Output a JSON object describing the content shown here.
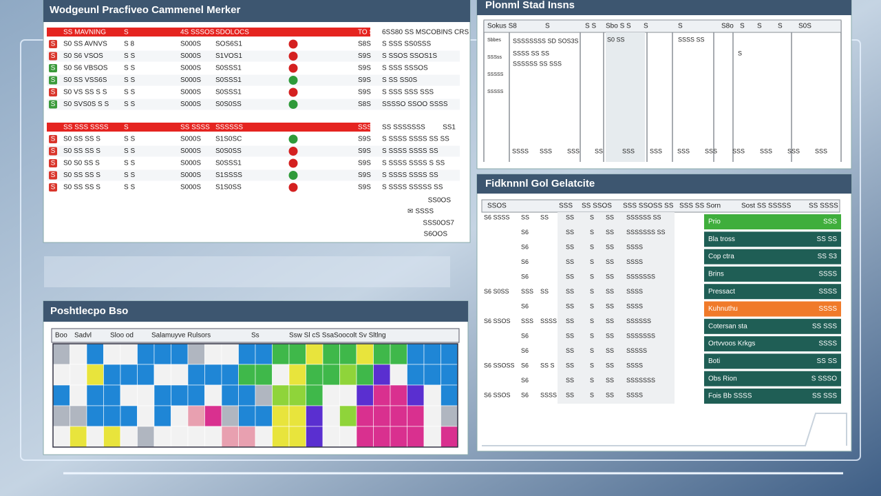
{
  "worklist": {
    "title": "Wodgeunl Pracfiveo Cammenel Merker",
    "header": [
      "SS MAVNING",
      "S",
      "4S SSSOS",
      "SDOLOCS",
      "TO SAAS",
      "6SS80 SS MSCOBINS CRS"
    ],
    "rows_a": [
      {
        "tag": "S",
        "tag_color": "#d9352b",
        "status_color": "#d42020",
        "cells": [
          "S0 SS AVNVS",
          "S  8",
          "S000S",
          "SOS6S1",
          "S8S",
          "S  SSS SS0SSS"
        ]
      },
      {
        "tag": "S",
        "tag_color": "#d9352b",
        "status_color": "#d42020",
        "cells": [
          "S0 S6 VSOS",
          "S  S",
          "S000S",
          "S1VOS1",
          "S9S",
          "S  SSOS SSOS1S"
        ]
      },
      {
        "tag": "S",
        "tag_color": "#3a9a3a",
        "status_color": "#d42020",
        "cells": [
          "S0 S6 VBSOS",
          "S  S",
          "S000S",
          "S0SSS1",
          "S9S",
          "S  SSS SSSOS"
        ]
      },
      {
        "tag": "S",
        "tag_color": "#3a9a3a",
        "status_color": "#2f9a3a",
        "cells": [
          "S0 SS VSS6S",
          "S  S",
          "S000S",
          "S0SSS1",
          "S9S",
          "S  SS SS0S"
        ]
      },
      {
        "tag": "S",
        "tag_color": "#d9352b",
        "status_color": "#d42020",
        "cells": [
          "S0 VS SS S  S",
          "S  S",
          "S000S",
          "S0SSS1",
          "S9S",
          "S  SSS SSS SSS"
        ]
      },
      {
        "tag": "S",
        "tag_color": "#3a9a3a",
        "status_color": "#2f9a3a",
        "cells": [
          "S0 SVS0S S  S",
          "S  S",
          "S000S",
          "S0S0SS",
          "S8S",
          "SSSSO SSOO SSSS"
        ]
      }
    ],
    "divider": [
      "SS SSS SSSS",
      "S",
      "SS SSSS",
      "SSSSSS",
      "SSSS",
      "SS SSSSSSS"
    ],
    "divider_note": "SS1",
    "rows_b": [
      {
        "tag": "S",
        "tag_color": "#d9352b",
        "status_color": "#2f9a3a",
        "cells": [
          "S0 SS SS S",
          "S  S",
          "S000S",
          "S1S0SC",
          "S9S",
          "S SSSS SSSS SS SS"
        ]
      },
      {
        "tag": "S",
        "tag_color": "#d9352b",
        "status_color": "#d42020",
        "cells": [
          "S0 SS SS S",
          "S  S",
          "S000S",
          "S0S0SS",
          "S9S",
          "S SSSS SSSS SS"
        ]
      },
      {
        "tag": "S",
        "tag_color": "#d9352b",
        "status_color": "#d42020",
        "cells": [
          "S0 S0 SS S",
          "S  S",
          "S000S",
          "S0SSS1",
          "S9S",
          "S SSSS SSSS S SS"
        ]
      },
      {
        "tag": "S",
        "tag_color": "#d9352b",
        "status_color": "#2f9a3a",
        "cells": [
          "S0 SS SS S",
          "S  S",
          "S000S",
          "S1SSSS",
          "S9S",
          "S SSSS SSSS SS"
        ]
      },
      {
        "tag": "S",
        "tag_color": "#d9352b",
        "status_color": "#d42020",
        "cells": [
          "S0 SS SS S",
          "S  S",
          "S000S",
          "S1S0SS",
          "S9S",
          "S SSSS SSSSS SS"
        ]
      }
    ],
    "footer": [
      "SS0OS",
      "✉ SSSS",
      "SSS0OS7",
      "S6OOS"
    ]
  },
  "status_board": {
    "title": "Plonml Stad Insns",
    "header": [
      "Sokus S8",
      "S",
      "S  S",
      "Sbo  S  S",
      "S",
      "S",
      "S8o",
      "S",
      "S",
      "S",
      "S0S"
    ],
    "side": [
      "Sbbes",
      "SSSss",
      "SSSSS",
      "SSSSS"
    ],
    "notes": [
      "SSSSSSSS SD SOS3S",
      "SSSS SS SS",
      "SSSSSS SS SSS",
      "S0 SS",
      "SSSS SS",
      "S"
    ],
    "bottom": [
      "SSSS",
      "SSS",
      "SSS",
      "SS",
      "SSS",
      "SSS",
      "SSS",
      "SSS",
      "SSS",
      "SSS",
      "SSS",
      "SSS"
    ]
  },
  "detail": {
    "title": "Fidknnnl Gol Gelatcite",
    "header": [
      "SSOS",
      "SSS",
      "SS SSOS",
      "SSS SSOSS SS",
      "SSS SS Sorn",
      "Sost SS SSSSS",
      "SS SSSS"
    ],
    "rows": [
      [
        "S6 SSSS",
        "SS",
        "SS",
        "SS",
        "S",
        "SS",
        "SSSSSS SS"
      ],
      [
        null,
        "S6",
        null,
        "SS",
        "S",
        "SS",
        "SSSSSSS SS"
      ],
      [
        null,
        "S6",
        null,
        "SS",
        "S",
        "SS",
        "SSSS"
      ],
      [
        null,
        "S6",
        null,
        "SS",
        "S",
        "SS",
        "SSSS"
      ],
      [
        null,
        "S6",
        null,
        "SS",
        "S",
        "SS",
        "SSSSSSS"
      ],
      [
        "S6 S0SS",
        "SSS",
        "SS",
        "SS",
        "S",
        "SS",
        "SSSS"
      ],
      [
        null,
        "S6",
        null,
        "SS",
        "S",
        "SS",
        "SSSS"
      ],
      [
        "S6 SSOS",
        "SSS",
        "SSSS",
        "SS",
        "S",
        "SS",
        "SSSSSS"
      ],
      [
        null,
        "S6",
        null,
        "SS",
        "S",
        "SS",
        "SSSSSSS"
      ],
      [
        null,
        "S6",
        null,
        "SS",
        "S",
        "SS",
        "SSSSS"
      ],
      [
        "S6 SSOSS",
        "S6",
        "SS S",
        "SS",
        "S",
        "SS",
        "SSSS"
      ],
      [
        null,
        "S6",
        null,
        "SS",
        "S",
        "SS",
        "SSSSSSS"
      ],
      [
        "S6 SSOS",
        "S6",
        "SSSS",
        "SS",
        "S",
        "SS",
        "SSSS"
      ]
    ],
    "list": [
      {
        "label": "Prio",
        "value": "SSS",
        "color": "#3fae3c"
      },
      {
        "label": "Bla tross",
        "value": "SS SS",
        "color": "#1f5e55"
      },
      {
        "label": "Cop ctra",
        "value": "SS S3",
        "color": "#1f5e55"
      },
      {
        "label": "Brins",
        "value": "SSSS",
        "color": "#1f5e55"
      },
      {
        "label": "Pressact",
        "value": "SSSS",
        "color": "#1f5e55"
      },
      {
        "label": "Kuhnuthu",
        "value": "SSSS",
        "color": "#f07a2a"
      },
      {
        "label": "Cotersan sta",
        "value": "SS SSS",
        "color": "#1f5e55"
      },
      {
        "label": "Ortvvoos Krkgs",
        "value": "SSSS",
        "color": "#1f5e55"
      },
      {
        "label": "Boti",
        "value": "SS SS",
        "color": "#1f5e55"
      },
      {
        "label": "Obs Rion",
        "value": "S SSSO",
        "color": "#1f5e55"
      },
      {
        "label": "Fois Bb SSSS",
        "value": "SS SSS",
        "color": "#1f5e55"
      }
    ]
  },
  "schedule": {
    "title": "Poshtlecpo Bso",
    "header": [
      "Boo",
      "Sadvl",
      "Sloo od",
      "Salamuyve Rulsors",
      "Ss",
      "Ssw Sl cS SsaSoocolt Sv Sltlng"
    ],
    "grid": [
      [
        "#b0b6c0",
        "#f2f2f2",
        "#1f86d6",
        "#f2f2f2",
        "#f2f2f2",
        "#1f86d6",
        "#1f86d6",
        "#1f86d6",
        "#b0b6c0",
        "#f2f2f2",
        "#f2f2f2",
        "#1f86d6",
        "#1f86d6",
        "#3fb84a",
        "#3fb84a",
        "#e8e43c",
        "#3fb84a",
        "#3fb84a",
        "#e8e43c",
        "#3fb84a",
        "#3fb84a",
        "#1f86d6",
        "#1f86d6",
        "#1f86d6"
      ],
      [
        "#f2f2f2",
        "#f2f2f2",
        "#e8e43c",
        "#1f86d6",
        "#1f86d6",
        "#1f86d6",
        "#f2f2f2",
        "#f2f2f2",
        "#1f86d6",
        "#1f86d6",
        "#1f86d6",
        "#3fb84a",
        "#3fb84a",
        "#f2f2f2",
        "#e8e43c",
        "#3fb84a",
        "#3fb84a",
        "#8fd43a",
        "#3fb84a",
        "#5a2fd0",
        "#f2f2f2",
        "#1f86d6",
        "#1f86d6",
        "#1f86d6"
      ],
      [
        "#1f86d6",
        "#f2f2f2",
        "#1f86d6",
        "#1f86d6",
        "#f2f2f2",
        "#f2f2f2",
        "#1f86d6",
        "#1f86d6",
        "#1f86d6",
        "#f2f2f2",
        "#1f86d6",
        "#1f86d6",
        "#b0b6c0",
        "#8fd43a",
        "#8fd43a",
        "#3fb84a",
        "#f2f2f2",
        "#f2f2f2",
        "#5a2fd0",
        "#d9308f",
        "#d9308f",
        "#5a2fd0",
        "#f2f2f2",
        "#1f86d6"
      ],
      [
        "#b0b6c0",
        "#b0b6c0",
        "#1f86d6",
        "#1f86d6",
        "#1f86d6",
        "#f2f2f2",
        "#1f86d6",
        "#f2f2f2",
        "#e8a0b0",
        "#d9308f",
        "#b0b6c0",
        "#1f86d6",
        "#1f86d6",
        "#e8e43c",
        "#e8e43c",
        "#5a2fd0",
        "#f2f2f2",
        "#8fd43a",
        "#d9308f",
        "#d9308f",
        "#d9308f",
        "#d9308f",
        "#f2f2f2",
        "#b0b6c0"
      ],
      [
        "#f2f2f2",
        "#e8e43c",
        "#f2f2f2",
        "#e8e43c",
        "#f2f2f2",
        "#b0b6c0",
        "#f2f2f2",
        "#f2f2f2",
        "#f2f2f2",
        "#f2f2f2",
        "#e8a0b0",
        "#e8a0b0",
        "#f2f2f2",
        "#e8e43c",
        "#e8e43c",
        "#5a2fd0",
        "#f2f2f2",
        "#f2f2f2",
        "#d9308f",
        "#d9308f",
        "#d9308f",
        "#d9308f",
        "#f2f2f2",
        "#d9308f"
      ]
    ]
  }
}
